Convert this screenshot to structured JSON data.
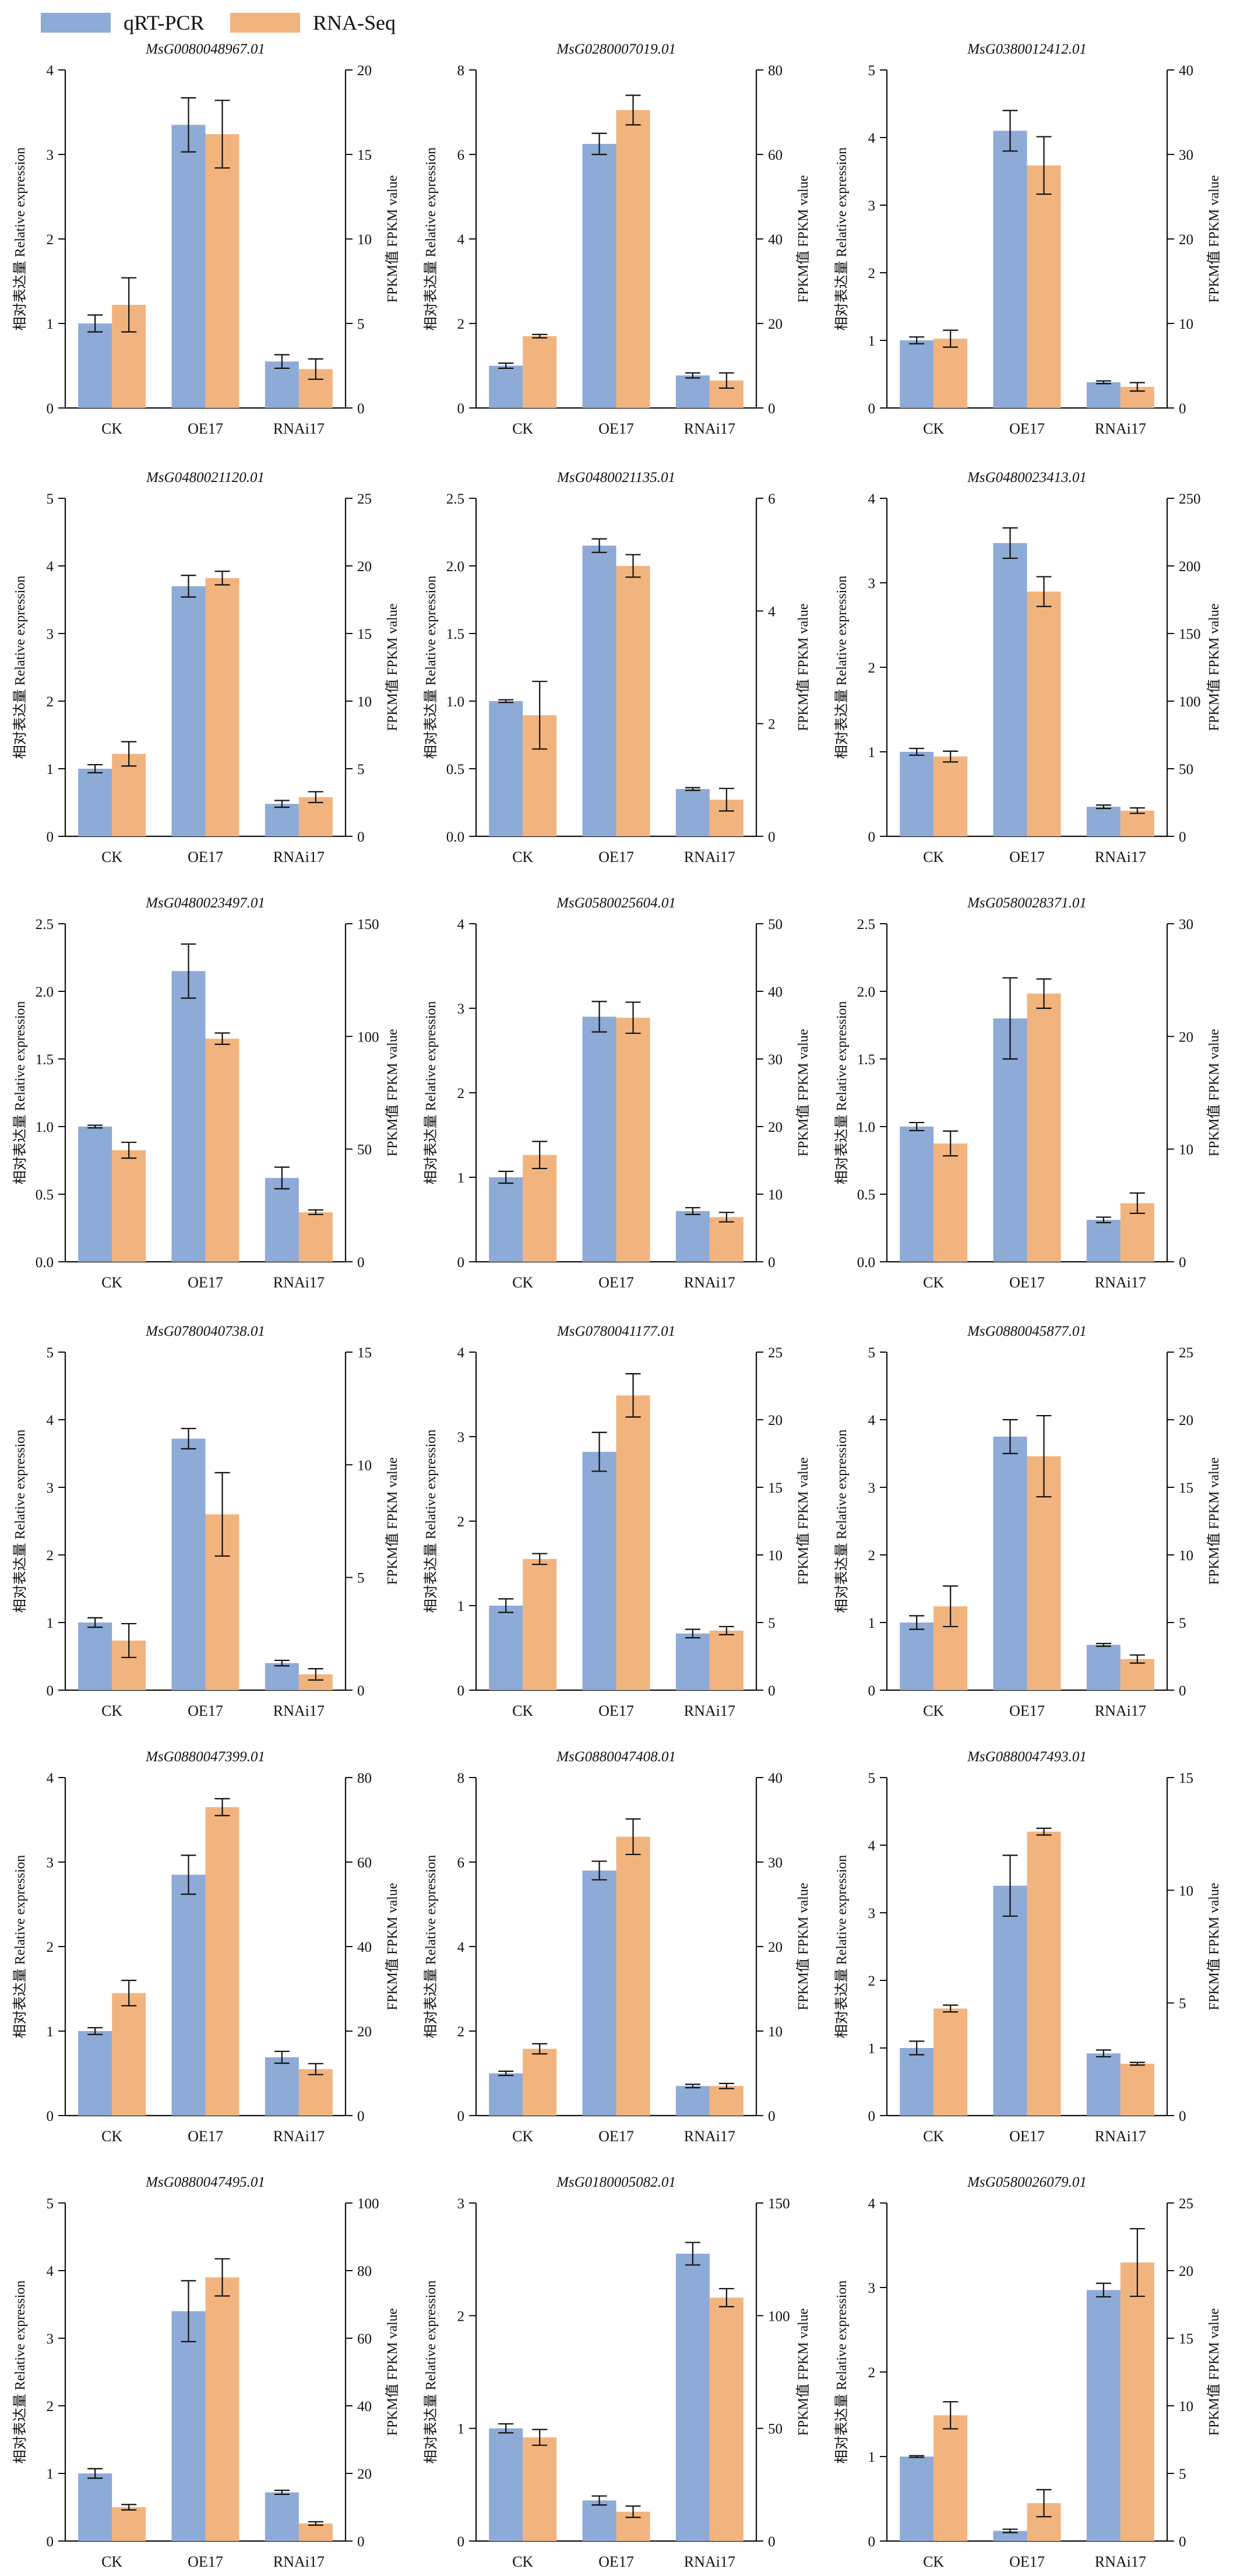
{
  "legend": {
    "qrt_label": "qRT-PCR",
    "rnaseq_label": "RNA-Seq"
  },
  "colors": {
    "qrt": "#8eaad6",
    "rnaseq": "#f2b47e",
    "axis": "#111111"
  },
  "left_axis_label": "相对表达量 Relative expression",
  "right_axis_label": "FPKM值 FPKM value",
  "chart_data": [
    {
      "type": "bar",
      "title": "MsG0080048967.01",
      "categories": [
        "CK",
        "OE17",
        "RNAi17"
      ],
      "series": [
        {
          "name": "qRT-PCR",
          "axis": "left",
          "values": [
            1.0,
            3.35,
            0.55
          ],
          "errors": [
            0.1,
            0.32,
            0.08
          ]
        },
        {
          "name": "RNA-Seq",
          "axis": "right",
          "values": [
            6.1,
            16.2,
            2.3
          ],
          "errors": [
            1.6,
            2.0,
            0.6
          ]
        }
      ],
      "ylim": [
        0,
        4
      ],
      "yticks": [
        0,
        1,
        2,
        3,
        4
      ],
      "y2lim": [
        0,
        20
      ],
      "y2ticks": [
        0,
        5,
        10,
        15,
        20
      ]
    },
    {
      "type": "bar",
      "title": "MsG0280007019.01",
      "categories": [
        "CK",
        "OE17",
        "RNAi17"
      ],
      "series": [
        {
          "name": "qRT-PCR",
          "axis": "left",
          "values": [
            1.0,
            6.25,
            0.77
          ],
          "errors": [
            0.06,
            0.25,
            0.06
          ]
        },
        {
          "name": "RNA-Seq",
          "axis": "right",
          "values": [
            17.0,
            70.5,
            6.5
          ],
          "errors": [
            0.4,
            3.5,
            1.8
          ]
        }
      ],
      "ylim": [
        0,
        8
      ],
      "yticks": [
        0,
        2,
        4,
        6,
        8
      ],
      "y2lim": [
        0,
        80
      ],
      "y2ticks": [
        0,
        20,
        40,
        60,
        80
      ]
    },
    {
      "type": "bar",
      "title": "MsG0380012412.01",
      "categories": [
        "CK",
        "OE17",
        "RNAi17"
      ],
      "series": [
        {
          "name": "qRT-PCR",
          "axis": "left",
          "values": [
            1.0,
            4.1,
            0.38
          ],
          "errors": [
            0.05,
            0.3,
            0.02
          ]
        },
        {
          "name": "RNA-Seq",
          "axis": "right",
          "values": [
            8.2,
            28.7,
            2.5
          ],
          "errors": [
            1.0,
            3.4,
            0.5
          ]
        }
      ],
      "ylim": [
        0,
        5
      ],
      "yticks": [
        0,
        1,
        2,
        3,
        4,
        5
      ],
      "y2lim": [
        0,
        40
      ],
      "y2ticks": [
        0,
        10,
        20,
        30,
        40
      ]
    },
    {
      "type": "bar",
      "title": "MsG0480021120.01",
      "categories": [
        "CK",
        "OE17",
        "RNAi17"
      ],
      "series": [
        {
          "name": "qRT-PCR",
          "axis": "left",
          "values": [
            1.0,
            3.7,
            0.48
          ],
          "errors": [
            0.06,
            0.16,
            0.05
          ]
        },
        {
          "name": "RNA-Seq",
          "axis": "right",
          "values": [
            6.1,
            19.1,
            2.9
          ],
          "errors": [
            0.9,
            0.5,
            0.4
          ]
        }
      ],
      "ylim": [
        0,
        5
      ],
      "yticks": [
        0,
        1,
        2,
        3,
        4,
        5
      ],
      "y2lim": [
        0,
        25
      ],
      "y2ticks": [
        0,
        5,
        10,
        15,
        20,
        25
      ]
    },
    {
      "type": "bar",
      "title": "MsG0480021135.01",
      "categories": [
        "CK",
        "OE17",
        "RNAi17"
      ],
      "series": [
        {
          "name": "qRT-PCR",
          "axis": "left",
          "values": [
            1.0,
            2.15,
            0.35
          ],
          "errors": [
            0.01,
            0.05,
            0.01
          ]
        },
        {
          "name": "RNA-Seq",
          "axis": "right",
          "values": [
            2.15,
            4.8,
            0.65
          ],
          "errors": [
            0.6,
            0.2,
            0.2
          ]
        }
      ],
      "ylim": [
        0,
        2.5
      ],
      "yticks": [
        0.0,
        0.5,
        1.0,
        1.5,
        2.0,
        2.5
      ],
      "y2lim": [
        0,
        6
      ],
      "y2ticks": [
        0,
        2,
        4,
        6
      ]
    },
    {
      "type": "bar",
      "title": "MsG0480023413.01",
      "categories": [
        "CK",
        "OE17",
        "RNAi17"
      ],
      "series": [
        {
          "name": "qRT-PCR",
          "axis": "left",
          "values": [
            1.0,
            3.47,
            0.35
          ],
          "errors": [
            0.04,
            0.18,
            0.02
          ]
        },
        {
          "name": "RNA-Seq",
          "axis": "right",
          "values": [
            59,
            181,
            19
          ],
          "errors": [
            4,
            11,
            2
          ]
        }
      ],
      "ylim": [
        0,
        4
      ],
      "yticks": [
        0,
        1,
        2,
        3,
        4
      ],
      "y2lim": [
        0,
        250
      ],
      "y2ticks": [
        0,
        50,
        100,
        150,
        200,
        250
      ]
    },
    {
      "type": "bar",
      "title": "MsG0480023497.01",
      "categories": [
        "CK",
        "OE17",
        "RNAi17"
      ],
      "series": [
        {
          "name": "qRT-PCR",
          "axis": "left",
          "values": [
            1.0,
            2.15,
            0.62
          ],
          "errors": [
            0.01,
            0.2,
            0.08
          ]
        },
        {
          "name": "RNA-Seq",
          "axis": "right",
          "values": [
            49.5,
            99,
            22
          ],
          "errors": [
            3.5,
            2.5,
            1.0
          ]
        }
      ],
      "ylim": [
        0,
        2.5
      ],
      "yticks": [
        0.0,
        0.5,
        1.0,
        1.5,
        2.0,
        2.5
      ],
      "y2lim": [
        0,
        150
      ],
      "y2ticks": [
        0,
        50,
        100,
        150
      ]
    },
    {
      "type": "bar",
      "title": "MsG0580025604.01",
      "categories": [
        "CK",
        "OE17",
        "RNAi17"
      ],
      "series": [
        {
          "name": "qRT-PCR",
          "axis": "left",
          "values": [
            1.0,
            2.9,
            0.6
          ],
          "errors": [
            0.07,
            0.18,
            0.04
          ]
        },
        {
          "name": "RNA-Seq",
          "axis": "right",
          "values": [
            15.8,
            36.1,
            6.6
          ],
          "errors": [
            2.0,
            2.3,
            0.7
          ]
        }
      ],
      "ylim": [
        0,
        4
      ],
      "yticks": [
        0,
        1,
        2,
        3,
        4
      ],
      "y2lim": [
        0,
        50
      ],
      "y2ticks": [
        0,
        10,
        20,
        30,
        40,
        50
      ]
    },
    {
      "type": "bar",
      "title": "MsG0580028371.01",
      "categories": [
        "CK",
        "OE17",
        "RNAi17"
      ],
      "series": [
        {
          "name": "qRT-PCR",
          "axis": "left",
          "values": [
            1.0,
            1.8,
            0.31
          ],
          "errors": [
            0.03,
            0.3,
            0.02
          ]
        },
        {
          "name": "RNA-Seq",
          "axis": "right",
          "values": [
            10.5,
            23.8,
            5.2
          ],
          "errors": [
            1.1,
            1.3,
            0.9
          ]
        }
      ],
      "ylim": [
        0,
        2.5
      ],
      "yticks": [
        0.0,
        0.5,
        1.0,
        1.5,
        2.0,
        2.5
      ],
      "y2lim": [
        0,
        30
      ],
      "y2ticks": [
        0,
        10,
        20,
        30
      ]
    },
    {
      "type": "bar",
      "title": "MsG0780040738.01",
      "categories": [
        "CK",
        "OE17",
        "RNAi17"
      ],
      "series": [
        {
          "name": "qRT-PCR",
          "axis": "left",
          "values": [
            1.0,
            3.72,
            0.4
          ],
          "errors": [
            0.07,
            0.15,
            0.04
          ]
        },
        {
          "name": "RNA-Seq",
          "axis": "right",
          "values": [
            2.2,
            7.8,
            0.7
          ],
          "errors": [
            0.75,
            1.85,
            0.25
          ]
        }
      ],
      "ylim": [
        0,
        5
      ],
      "yticks": [
        0,
        1,
        2,
        3,
        4,
        5
      ],
      "y2lim": [
        0,
        15
      ],
      "y2ticks": [
        0,
        5,
        10,
        15
      ]
    },
    {
      "type": "bar",
      "title": "MsG0780041177.01",
      "categories": [
        "CK",
        "OE17",
        "RNAi17"
      ],
      "series": [
        {
          "name": "qRT-PCR",
          "axis": "left",
          "values": [
            1.0,
            2.82,
            0.67
          ],
          "errors": [
            0.08,
            0.23,
            0.05
          ]
        },
        {
          "name": "RNA-Seq",
          "axis": "right",
          "values": [
            9.7,
            21.8,
            4.4
          ],
          "errors": [
            0.4,
            1.6,
            0.3
          ]
        }
      ],
      "ylim": [
        0,
        4
      ],
      "yticks": [
        0,
        1,
        2,
        3,
        4
      ],
      "y2lim": [
        0,
        25
      ],
      "y2ticks": [
        0,
        5,
        10,
        15,
        20,
        25
      ]
    },
    {
      "type": "bar",
      "title": "MsG0880045877.01",
      "categories": [
        "CK",
        "OE17",
        "RNAi17"
      ],
      "series": [
        {
          "name": "qRT-PCR",
          "axis": "left",
          "values": [
            1.0,
            3.75,
            0.67
          ],
          "errors": [
            0.1,
            0.25,
            0.02
          ]
        },
        {
          "name": "RNA-Seq",
          "axis": "right",
          "values": [
            6.2,
            17.3,
            2.3
          ],
          "errors": [
            1.5,
            3.0,
            0.3
          ]
        }
      ],
      "ylim": [
        0,
        5
      ],
      "yticks": [
        0,
        1,
        2,
        3,
        4,
        5
      ],
      "y2lim": [
        0,
        25
      ],
      "y2ticks": [
        0,
        5,
        10,
        15,
        20,
        25
      ]
    },
    {
      "type": "bar",
      "title": "MsG0880047399.01",
      "categories": [
        "CK",
        "OE17",
        "RNAi17"
      ],
      "series": [
        {
          "name": "qRT-PCR",
          "axis": "left",
          "values": [
            1.0,
            2.85,
            0.69
          ],
          "errors": [
            0.04,
            0.23,
            0.07
          ]
        },
        {
          "name": "RNA-Seq",
          "axis": "right",
          "values": [
            29,
            73,
            11
          ],
          "errors": [
            3,
            2,
            1.3
          ]
        }
      ],
      "ylim": [
        0,
        4
      ],
      "yticks": [
        0,
        1,
        2,
        3,
        4
      ],
      "y2lim": [
        0,
        80
      ],
      "y2ticks": [
        0,
        20,
        40,
        60,
        80
      ]
    },
    {
      "type": "bar",
      "title": "MsG0880047408.01",
      "categories": [
        "CK",
        "OE17",
        "RNAi17"
      ],
      "series": [
        {
          "name": "qRT-PCR",
          "axis": "left",
          "values": [
            1.0,
            5.8,
            0.7
          ],
          "errors": [
            0.05,
            0.22,
            0.04
          ]
        },
        {
          "name": "RNA-Seq",
          "axis": "right",
          "values": [
            7.9,
            33,
            3.5
          ],
          "errors": [
            0.6,
            2.1,
            0.3
          ]
        }
      ],
      "ylim": [
        0,
        8
      ],
      "yticks": [
        0,
        2,
        4,
        6,
        8
      ],
      "y2lim": [
        0,
        40
      ],
      "y2ticks": [
        0,
        10,
        20,
        30,
        40
      ]
    },
    {
      "type": "bar",
      "title": "MsG0880047493.01",
      "categories": [
        "CK",
        "OE17",
        "RNAi17"
      ],
      "series": [
        {
          "name": "qRT-PCR",
          "axis": "left",
          "values": [
            1.0,
            3.4,
            0.92
          ],
          "errors": [
            0.1,
            0.45,
            0.05
          ]
        },
        {
          "name": "RNA-Seq",
          "axis": "right",
          "values": [
            4.75,
            12.6,
            2.3
          ],
          "errors": [
            0.15,
            0.15,
            0.06
          ]
        }
      ],
      "ylim": [
        0,
        5
      ],
      "yticks": [
        0,
        1,
        2,
        3,
        4,
        5
      ],
      "y2lim": [
        0,
        15
      ],
      "y2ticks": [
        0,
        5,
        10,
        15
      ]
    },
    {
      "type": "bar",
      "title": "MsG0880047495.01",
      "categories": [
        "CK",
        "OE17",
        "RNAi17"
      ],
      "series": [
        {
          "name": "qRT-PCR",
          "axis": "left",
          "values": [
            1.0,
            3.4,
            0.72
          ],
          "errors": [
            0.07,
            0.45,
            0.03
          ]
        },
        {
          "name": "RNA-Seq",
          "axis": "right",
          "values": [
            10,
            78,
            5.2
          ],
          "errors": [
            0.8,
            5.5,
            0.5
          ]
        }
      ],
      "ylim": [
        0,
        5
      ],
      "yticks": [
        0,
        1,
        2,
        3,
        4,
        5
      ],
      "y2lim": [
        0,
        100
      ],
      "y2ticks": [
        0,
        20,
        40,
        60,
        80,
        100
      ]
    },
    {
      "type": "bar",
      "title": "MsG0180005082.01",
      "categories": [
        "CK",
        "OE17",
        "RNAi17"
      ],
      "series": [
        {
          "name": "qRT-PCR",
          "axis": "left",
          "values": [
            1.0,
            0.36,
            2.55
          ],
          "errors": [
            0.04,
            0.04,
            0.1
          ]
        },
        {
          "name": "RNA-Seq",
          "axis": "right",
          "values": [
            46,
            13,
            108
          ],
          "errors": [
            3.5,
            2.5,
            4
          ]
        }
      ],
      "ylim": [
        0,
        3
      ],
      "yticks": [
        0,
        1,
        2,
        3
      ],
      "y2lim": [
        0,
        150
      ],
      "y2ticks": [
        0,
        50,
        100,
        150
      ]
    },
    {
      "type": "bar",
      "title": "MsG0580026079.01",
      "categories": [
        "CK",
        "OE17",
        "RNAi17"
      ],
      "series": [
        {
          "name": "qRT-PCR",
          "axis": "left",
          "values": [
            1.0,
            0.12,
            2.97
          ],
          "errors": [
            0.01,
            0.02,
            0.08
          ]
        },
        {
          "name": "RNA-Seq",
          "axis": "right",
          "values": [
            9.3,
            2.8,
            20.6
          ],
          "errors": [
            1.0,
            1.0,
            2.5
          ]
        }
      ],
      "ylim": [
        0,
        4
      ],
      "yticks": [
        0,
        1,
        2,
        3,
        4
      ],
      "y2lim": [
        0,
        25
      ],
      "y2ticks": [
        0,
        5,
        10,
        15,
        20,
        25
      ]
    }
  ]
}
